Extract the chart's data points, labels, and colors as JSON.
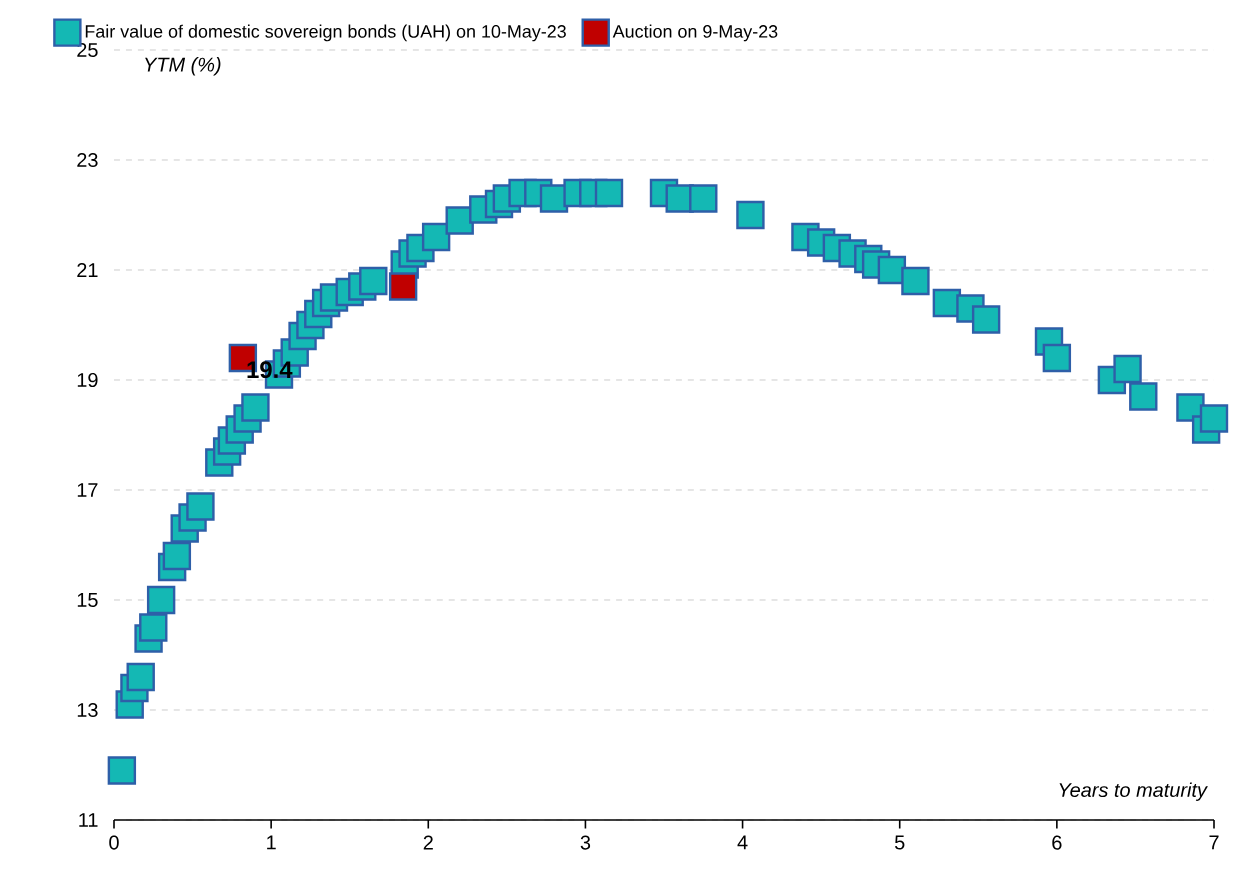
{
  "chart_data": {
    "type": "scatter",
    "xlabel": "Years to maturity",
    "ylabel": "YTM (%)",
    "xlim": [
      0,
      7
    ],
    "ylim": [
      11,
      25
    ],
    "xticks": [
      0,
      1,
      2,
      3,
      4,
      5,
      6,
      7
    ],
    "yticks": [
      11,
      13,
      15,
      17,
      19,
      21,
      23,
      25
    ],
    "grid": "y",
    "legend": "top",
    "marker": "square",
    "series": [
      {
        "name": "Fair value of domestic sovereign bonds (UAH) on 10-May-23",
        "color": "#14b8b4",
        "x": [
          0.05,
          0.1,
          0.13,
          0.17,
          0.22,
          0.25,
          0.3,
          0.37,
          0.4,
          0.45,
          0.5,
          0.55,
          0.67,
          0.72,
          0.75,
          0.8,
          0.85,
          0.9,
          1.05,
          1.1,
          1.15,
          1.2,
          1.25,
          1.3,
          1.35,
          1.4,
          1.5,
          1.58,
          1.65,
          1.85,
          1.9,
          1.95,
          2.05,
          2.2,
          2.35,
          2.45,
          2.5,
          2.6,
          2.7,
          2.8,
          2.95,
          3.05,
          3.15,
          3.5,
          3.6,
          3.75,
          4.05,
          4.4,
          4.5,
          4.6,
          4.7,
          4.8,
          4.85,
          4.95,
          5.1,
          5.3,
          5.45,
          5.55,
          5.95,
          6.0,
          6.35,
          6.45,
          6.55,
          6.85,
          6.95,
          7.0
        ],
        "values": [
          11.9,
          13.1,
          13.4,
          13.6,
          14.3,
          14.5,
          15.0,
          15.6,
          15.8,
          16.3,
          16.5,
          16.7,
          17.5,
          17.7,
          17.9,
          18.1,
          18.3,
          18.5,
          19.1,
          19.3,
          19.5,
          19.8,
          20.0,
          20.2,
          20.4,
          20.5,
          20.6,
          20.7,
          20.8,
          21.1,
          21.3,
          21.4,
          21.6,
          21.9,
          22.1,
          22.2,
          22.3,
          22.4,
          22.4,
          22.3,
          22.4,
          22.4,
          22.4,
          22.4,
          22.3,
          22.3,
          22.0,
          21.6,
          21.5,
          21.4,
          21.3,
          21.2,
          21.1,
          21.0,
          20.8,
          20.4,
          20.3,
          20.1,
          19.7,
          19.4,
          19.0,
          19.2,
          18.7,
          18.5,
          18.1,
          18.3
        ]
      },
      {
        "name": "Auction on 9-May-23",
        "color": "#c00000",
        "x": [
          0.82,
          1.84
        ],
        "values": [
          19.4,
          20.7
        ],
        "value_labels": [
          "19.4",
          null
        ]
      }
    ]
  }
}
